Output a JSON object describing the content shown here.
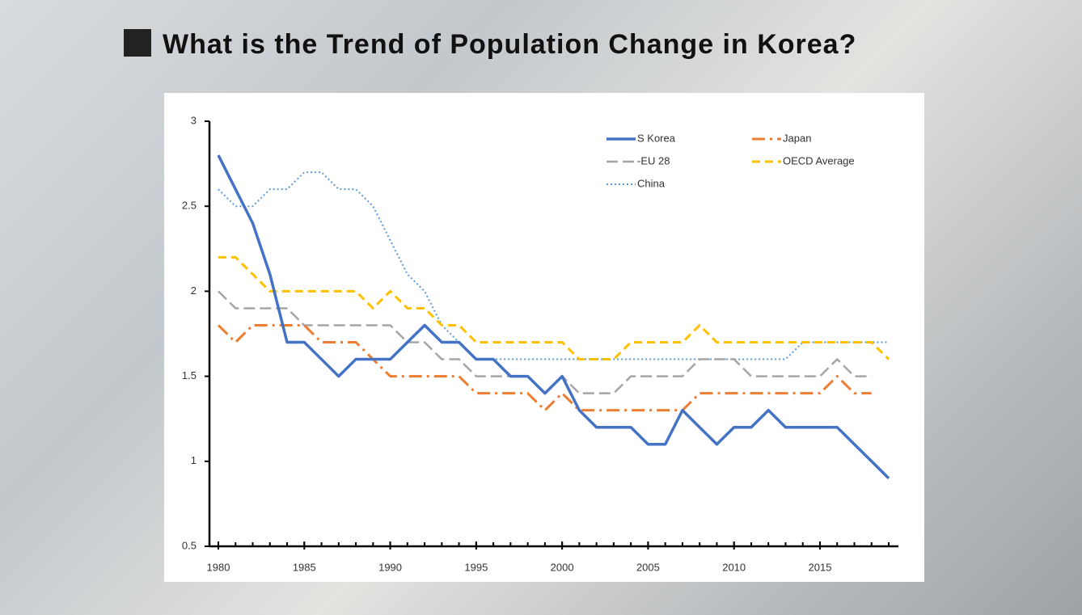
{
  "title": "What is the Trend of Population Change in Korea?",
  "chart_data": {
    "type": "line",
    "x": [
      1980,
      1981,
      1982,
      1983,
      1984,
      1985,
      1986,
      1987,
      1988,
      1989,
      1990,
      1991,
      1992,
      1993,
      1994,
      1995,
      1996,
      1997,
      1998,
      1999,
      2000,
      2001,
      2002,
      2003,
      2004,
      2005,
      2006,
      2007,
      2008,
      2009,
      2010,
      2011,
      2012,
      2013,
      2014,
      2015,
      2016,
      2017,
      2018,
      2019
    ],
    "xlim": [
      1980,
      2019
    ],
    "xticks": [
      1980,
      1985,
      1990,
      1995,
      2000,
      2005,
      2010,
      2015
    ],
    "ylim": [
      0.5,
      3
    ],
    "yticks": [
      0.5,
      1,
      1.5,
      2,
      2.5,
      3
    ],
    "series": [
      {
        "name": "S Korea",
        "color": "#4472c4",
        "dash": "none",
        "width": 3.5,
        "values": [
          2.8,
          2.6,
          2.4,
          2.1,
          1.7,
          1.7,
          1.6,
          1.5,
          1.6,
          1.6,
          1.6,
          1.7,
          1.8,
          1.7,
          1.7,
          1.6,
          1.6,
          1.5,
          1.5,
          1.4,
          1.5,
          1.3,
          1.2,
          1.2,
          1.2,
          1.1,
          1.1,
          1.3,
          1.2,
          1.1,
          1.2,
          1.2,
          1.3,
          1.2,
          1.2,
          1.2,
          1.2,
          1.1,
          1.0,
          0.9
        ]
      },
      {
        "name": "Japan",
        "color": "#ed7d31",
        "dash": "16 6 3 6",
        "width": 3,
        "values": [
          1.8,
          1.7,
          1.8,
          1.8,
          1.8,
          1.8,
          1.7,
          1.7,
          1.7,
          1.6,
          1.5,
          1.5,
          1.5,
          1.5,
          1.5,
          1.4,
          1.4,
          1.4,
          1.4,
          1.3,
          1.4,
          1.3,
          1.3,
          1.3,
          1.3,
          1.3,
          1.3,
          1.3,
          1.4,
          1.4,
          1.4,
          1.4,
          1.4,
          1.4,
          1.4,
          1.4,
          1.5,
          1.4,
          1.4,
          null
        ]
      },
      {
        "name": "-EU 28",
        "color": "#a5a5a5",
        "dash": "14 6",
        "width": 2.5,
        "values": [
          2.0,
          1.9,
          1.9,
          1.9,
          1.9,
          1.8,
          1.8,
          1.8,
          1.8,
          1.8,
          1.8,
          1.7,
          1.7,
          1.6,
          1.6,
          1.5,
          1.5,
          1.5,
          1.5,
          1.4,
          1.5,
          1.4,
          1.4,
          1.4,
          1.5,
          1.5,
          1.5,
          1.5,
          1.6,
          1.6,
          1.6,
          1.5,
          1.5,
          1.5,
          1.5,
          1.5,
          1.6,
          1.5,
          1.5,
          null
        ]
      },
      {
        "name": "OECD Average",
        "color": "#ffc000",
        "dash": "10 6",
        "width": 3,
        "values": [
          2.2,
          2.2,
          2.1,
          2.0,
          2.0,
          2.0,
          2.0,
          2.0,
          2.0,
          1.9,
          2.0,
          1.9,
          1.9,
          1.8,
          1.8,
          1.7,
          1.7,
          1.7,
          1.7,
          1.7,
          1.7,
          1.6,
          1.6,
          1.6,
          1.7,
          1.7,
          1.7,
          1.7,
          1.8,
          1.7,
          1.7,
          1.7,
          1.7,
          1.7,
          1.7,
          1.7,
          1.7,
          1.7,
          1.7,
          1.6
        ]
      },
      {
        "name": "China",
        "color": "#5b9bd5",
        "dash": "2 3",
        "width": 2,
        "values": [
          2.6,
          2.5,
          2.5,
          2.6,
          2.6,
          2.7,
          2.7,
          2.6,
          2.6,
          2.5,
          2.3,
          2.1,
          2.0,
          1.8,
          1.7,
          1.6,
          1.6,
          1.6,
          1.6,
          1.6,
          1.6,
          1.6,
          1.6,
          1.6,
          1.6,
          1.6,
          1.6,
          1.6,
          1.6,
          1.6,
          1.6,
          1.6,
          1.6,
          1.6,
          1.7,
          1.7,
          1.7,
          1.7,
          1.7,
          1.7
        ]
      }
    ]
  }
}
